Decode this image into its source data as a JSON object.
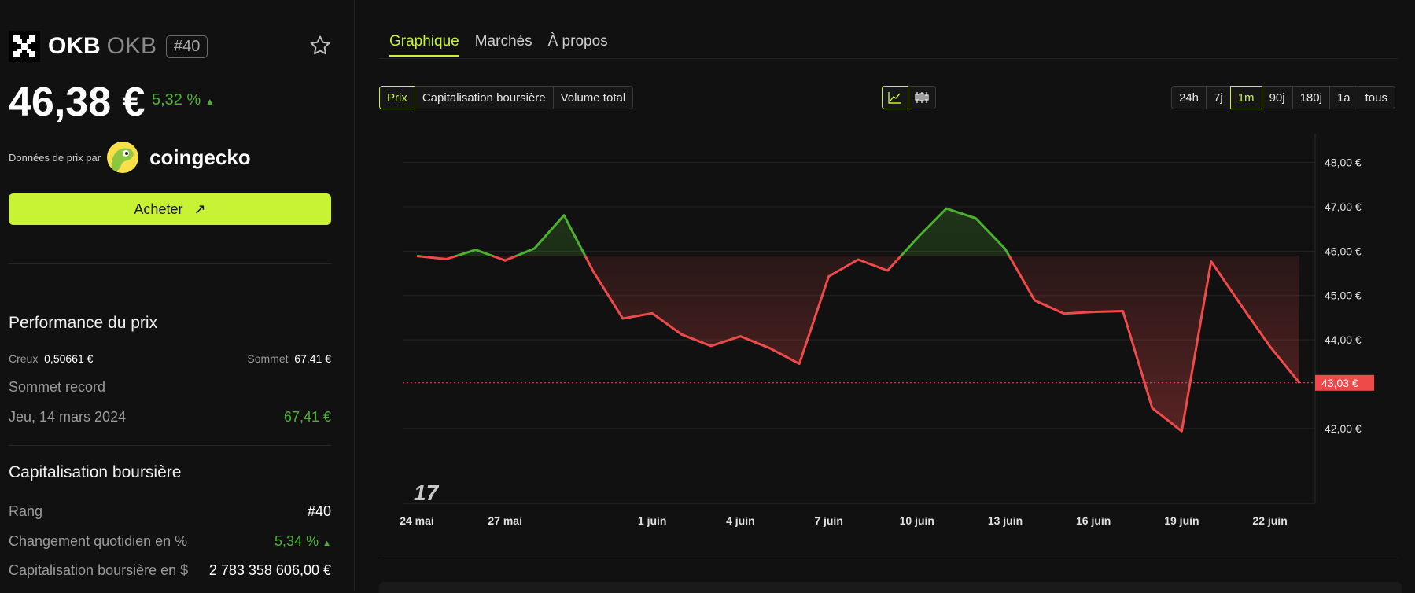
{
  "coin": {
    "name": "OKB",
    "symbol": "OKB",
    "rank": "#40",
    "price": "46,38 €",
    "change": "5,32 %",
    "change_arrow": "▲"
  },
  "provider": {
    "label": "Données de prix par",
    "name": "coingecko"
  },
  "buy_label": "Acheter",
  "performance": {
    "title": "Performance du prix",
    "low_label": "Creux",
    "low_value": "0,50661 €",
    "high_label": "Sommet",
    "high_value": "67,41 €",
    "ath_label": "Sommet record",
    "ath_date": "Jeu, 14 mars 2024",
    "ath_value": "67,41 €"
  },
  "market_cap": {
    "title": "Capitalisation boursière",
    "rank_label": "Rang",
    "rank_value": "#40",
    "daily_label": "Changement quotidien en %",
    "daily_value": "5,34 %",
    "daily_arrow": "▲",
    "usd_label": "Capitalisation boursière en $",
    "usd_value": "2 783 358 606,00 €"
  },
  "tabs": [
    "Graphique",
    "Marchés",
    "À propos"
  ],
  "metric_buttons": [
    "Prix",
    "Capitalisation boursière",
    "Volume total"
  ],
  "range_buttons": [
    "24h",
    "7j",
    "1m",
    "90j",
    "180j",
    "1a",
    "tous"
  ],
  "chart_icons": [
    "line-chart-icon",
    "candlestick-icon"
  ],
  "colors": {
    "accent": "#c8f234",
    "up": "#4caf30",
    "down": "#ef4a4a"
  },
  "chart_data": {
    "type": "line",
    "x": [
      "24 mai",
      "25 mai",
      "26 mai",
      "27 mai",
      "28 mai",
      "29 mai",
      "30 mai",
      "31 mai",
      "1 juin",
      "2 juin",
      "3 juin",
      "4 juin",
      "5 juin",
      "6 juin",
      "7 juin",
      "8 juin",
      "9 juin",
      "10 juin",
      "11 juin",
      "12 juin",
      "13 juin",
      "14 juin",
      "15 juin",
      "16 juin",
      "17 juin",
      "18 juin",
      "19 juin",
      "20 juin",
      "21 juin",
      "22 juin",
      "23 juin"
    ],
    "values": [
      45.89,
      45.82,
      46.03,
      45.79,
      46.06,
      46.81,
      45.54,
      44.48,
      44.6,
      44.12,
      43.86,
      44.08,
      43.81,
      43.46,
      45.43,
      45.81,
      45.56,
      46.29,
      46.96,
      46.74,
      46.05,
      44.89,
      44.59,
      44.63,
      44.65,
      42.46,
      41.94,
      45.77,
      44.8,
      43.85,
      43.03
    ],
    "baseline": 45.89,
    "current_value": 43.03,
    "current_label": "43,03 €",
    "ylim": [
      41.2,
      48.4
    ],
    "yticks": [
      42,
      43,
      44,
      45,
      46,
      47,
      48
    ],
    "ytick_labels": [
      "42,00 €",
      "",
      "44,00 €",
      "45,00 €",
      "46,00 €",
      "47,00 €",
      "48,00 €"
    ],
    "xticks": [
      0,
      3,
      8,
      11,
      14,
      17,
      20,
      23,
      26,
      29
    ],
    "xtick_labels": [
      "24 mai",
      "27 mai",
      "1 juin",
      "4 juin",
      "7 juin",
      "10 juin",
      "13 juin",
      "16 juin",
      "19 juin",
      "22 juin"
    ],
    "grid": true,
    "watermark": "17"
  }
}
